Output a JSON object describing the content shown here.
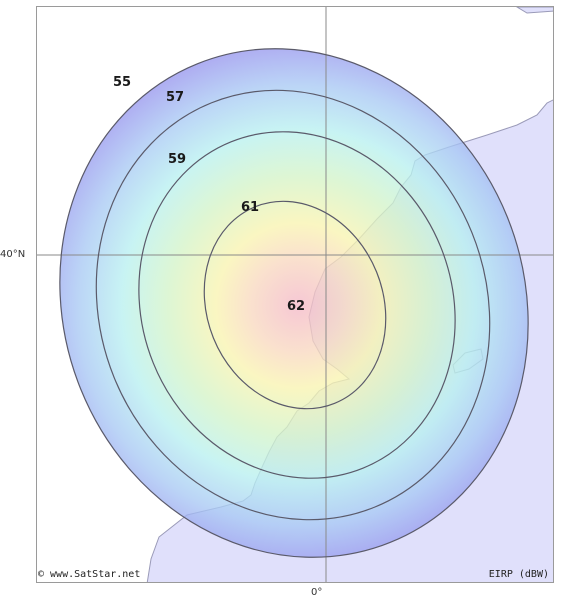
{
  "map": {
    "contour_labels": [
      "55",
      "57",
      "59",
      "61",
      "62"
    ],
    "latitude_label": "40°N",
    "longitude_label": "0°",
    "copyright": "© www.SatStar.net",
    "unit_label": "EIRP (dBW)",
    "colors": {
      "land": "#e0e0fb",
      "coast": "#9a9ab8",
      "contour_line": "#5a5a6a",
      "grid_line": "#8a8a8a",
      "beam_center": "#f4b8c8",
      "beam_mid": "#f8f4b0",
      "beam_cyan": "#b8f0f0",
      "beam_edge": "#9898ee"
    }
  }
}
